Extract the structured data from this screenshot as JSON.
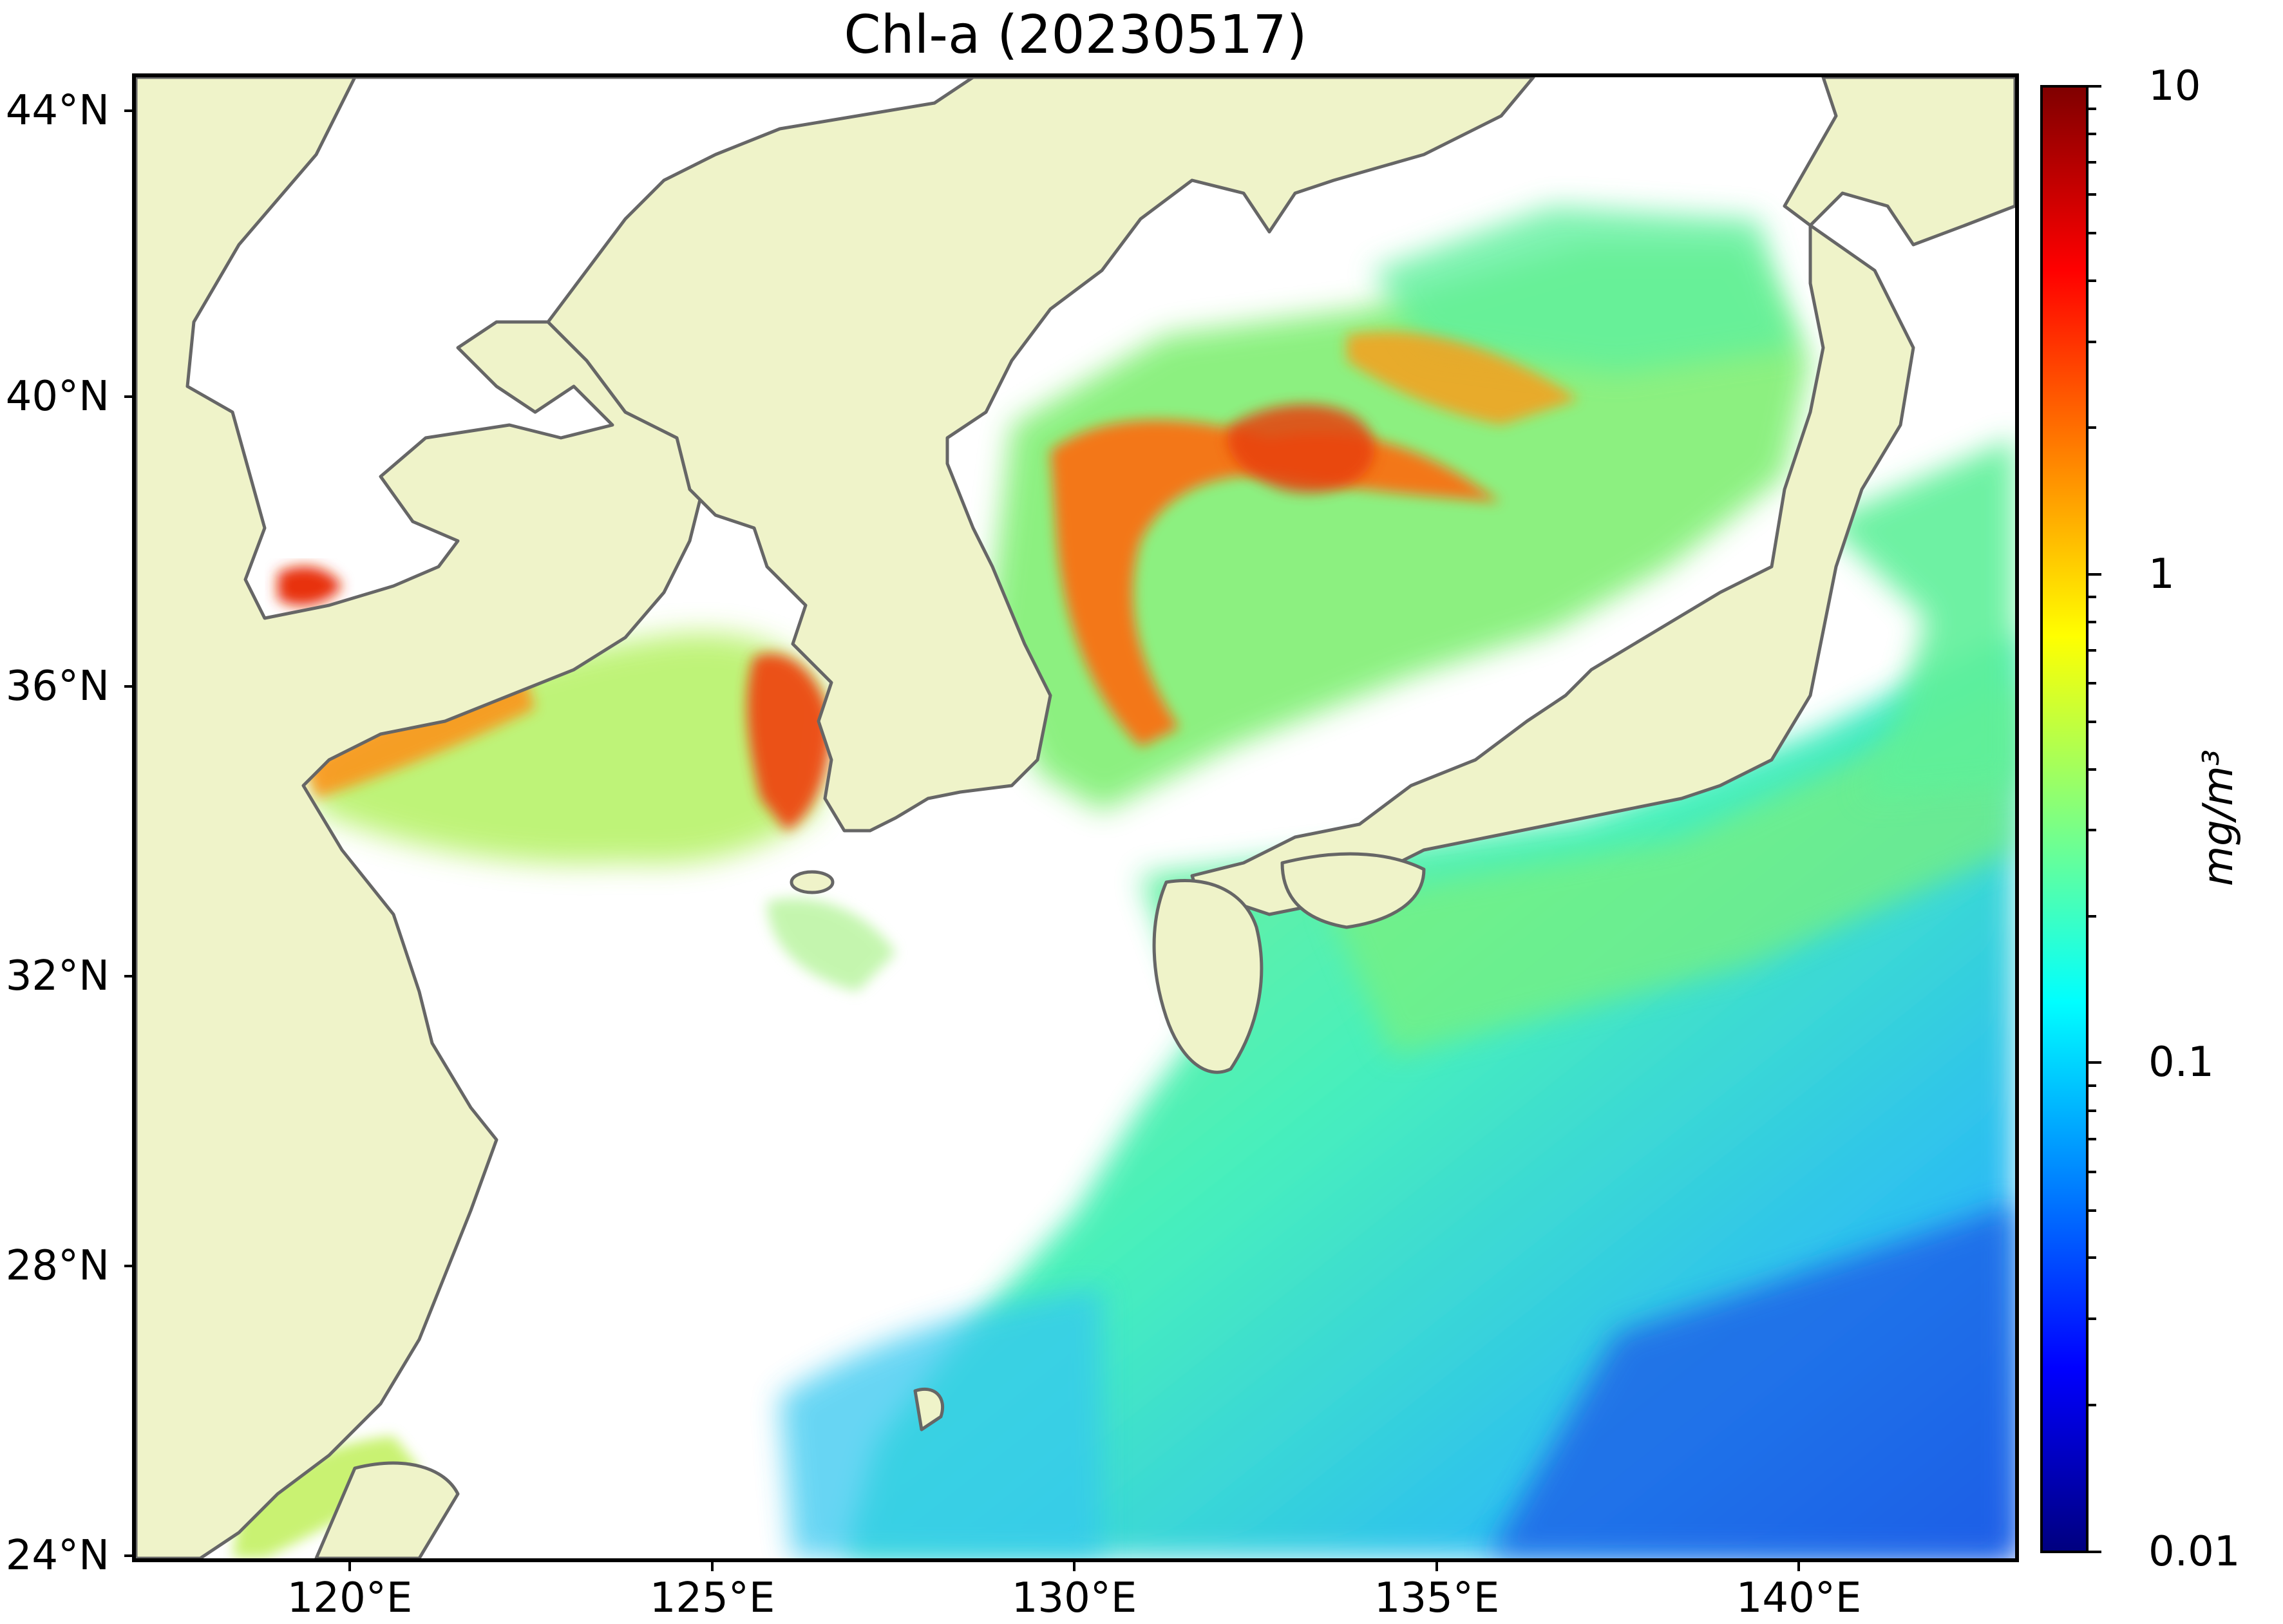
{
  "title": "Chl-a (20230517)",
  "map": {
    "extent": {
      "lon_min": 117,
      "lon_max": 143,
      "lat_min": 24,
      "lat_max": 44.5
    },
    "land_color": "#eff3c9",
    "coast_color": "#666666",
    "no_data_color": "#ffffff",
    "lat_ticks": [
      {
        "value": 44,
        "label": "44°N"
      },
      {
        "value": 40,
        "label": "40°N"
      },
      {
        "value": 36,
        "label": "36°N"
      },
      {
        "value": 32,
        "label": "32°N"
      },
      {
        "value": 28,
        "label": "28°N"
      },
      {
        "value": 24,
        "label": "24°N"
      }
    ],
    "lon_ticks": [
      {
        "value": 120,
        "label": "120°E"
      },
      {
        "value": 125,
        "label": "125°E"
      },
      {
        "value": 130,
        "label": "130°E"
      },
      {
        "value": 135,
        "label": "135°E"
      },
      {
        "value": 140,
        "label": "140°E"
      }
    ]
  },
  "colorbar": {
    "scale": "log",
    "min": 0.01,
    "max": 10,
    "colormap": "jet",
    "unit": "mg/m³",
    "major_ticks": [
      {
        "value": 10,
        "label": "10"
      },
      {
        "value": 1,
        "label": "1"
      },
      {
        "value": 0.1,
        "label": "0.1"
      },
      {
        "value": 0.01,
        "label": "0.01"
      }
    ]
  }
}
